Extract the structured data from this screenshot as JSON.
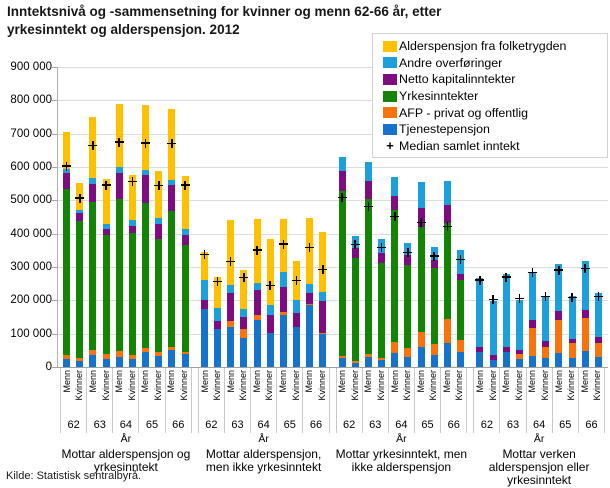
{
  "title": "Inntektsnivå og -sammensetning for kvinner og menn 62-66 år, etter\nyrkesinntekt og alderspensjon. 2012",
  "source": "Kilde: Statistisk sentralbyrå.",
  "legend": {
    "items": [
      {
        "key": "alderspensjon",
        "label": "Alderspensjon fra folketrygden",
        "color": "#ffc000"
      },
      {
        "key": "overforinger",
        "label": "Andre overføringer",
        "color": "#1ba0dc"
      },
      {
        "key": "kapital",
        "label": "Netto kapitalinntekter",
        "color": "#7c0c80"
      },
      {
        "key": "yrkesinntekter",
        "label": "Yrkesinntekter",
        "color": "#148404"
      },
      {
        "key": "afp",
        "label": "AFP - privat og offentlig",
        "color": "#f8730b"
      },
      {
        "key": "tjenestepensjon",
        "label": "Tjenestepensjon",
        "color": "#1673cc"
      },
      {
        "key": "median",
        "label": "Median samlet inntekt",
        "symbol": "+"
      }
    ]
  },
  "chart_data": {
    "type": "bar",
    "stacked": true,
    "ylim": [
      0,
      900000
    ],
    "ytick_interval": 100000,
    "yticks": [
      "900 000",
      "800 000",
      "700 000",
      "600 000",
      "500 000",
      "400 000",
      "300 000",
      "200 000",
      "100 000",
      "0"
    ],
    "grid": true,
    "legend_position": "top-right",
    "age_axis_label": "År",
    "ages": [
      "62",
      "63",
      "64",
      "65",
      "66"
    ],
    "genders": [
      "Menn",
      "Kvinner"
    ],
    "stack_order_bottom_to_top": [
      "tjenestepensjon",
      "afp",
      "yrkesinntekter",
      "kapital",
      "overforinger",
      "alderspensjon"
    ],
    "colors": {
      "tjenestepensjon": "#1673cc",
      "afp": "#f8730b",
      "yrkesinntekter": "#148404",
      "kapital": "#7c0c80",
      "overforinger": "#1ba0dc",
      "alderspensjon": "#ffc000"
    },
    "median_marker": "+",
    "groups": [
      {
        "label": "Mottar alderspensjon og yrkesinntekt",
        "bars": [
          {
            "age": "62",
            "gender": "Menn",
            "tjenestepensjon": 24000,
            "afp": 11000,
            "yrkesinntekter": 498000,
            "kapital": 50000,
            "overforinger": 10000,
            "alderspensjon": 112000,
            "median": 603000
          },
          {
            "age": "62",
            "gender": "Kvinner",
            "tjenestepensjon": 17000,
            "afp": 10000,
            "yrkesinntekter": 410000,
            "kapital": 25000,
            "overforinger": 10000,
            "alderspensjon": 81000,
            "median": 507000
          },
          {
            "age": "63",
            "gender": "Menn",
            "tjenestepensjon": 36000,
            "afp": 16000,
            "yrkesinntekter": 443000,
            "kapital": 53000,
            "overforinger": 20000,
            "alderspensjon": 182000,
            "median": 665000
          },
          {
            "age": "63",
            "gender": "Kvinner",
            "tjenestepensjon": 24000,
            "afp": 16000,
            "yrkesinntekter": 357000,
            "kapital": 18000,
            "overforinger": 15000,
            "alderspensjon": 135000,
            "median": 546000
          },
          {
            "age": "64",
            "gender": "Menn",
            "tjenestepensjon": 29000,
            "afp": 20000,
            "yrkesinntekter": 456000,
            "kapital": 78000,
            "overforinger": 17000,
            "alderspensjon": 190000,
            "median": 675000
          },
          {
            "age": "64",
            "gender": "Kvinner",
            "tjenestepensjon": 25000,
            "afp": 12000,
            "yrkesinntekter": 366000,
            "kapital": 19000,
            "overforinger": 18000,
            "alderspensjon": 137000,
            "median": 556000
          },
          {
            "age": "65",
            "gender": "Menn",
            "tjenestepensjon": 44000,
            "afp": 12000,
            "yrkesinntekter": 436000,
            "kapital": 83000,
            "overforinger": 15000,
            "alderspensjon": 197000,
            "median": 672000
          },
          {
            "age": "65",
            "gender": "Kvinner",
            "tjenestepensjon": 33000,
            "afp": 12000,
            "yrkesinntekter": 340000,
            "kapital": 43000,
            "overforinger": 20000,
            "alderspensjon": 139000,
            "median": 544000
          },
          {
            "age": "66",
            "gender": "Menn",
            "tjenestepensjon": 52000,
            "afp": 8000,
            "yrkesinntekter": 408000,
            "kapital": 77000,
            "overforinger": 15000,
            "alderspensjon": 213000,
            "median": 671000
          },
          {
            "age": "66",
            "gender": "Kvinner",
            "tjenestepensjon": 38000,
            "afp": 8000,
            "yrkesinntekter": 319000,
            "kapital": 30000,
            "overforinger": 18000,
            "alderspensjon": 159000,
            "median": 546000
          }
        ]
      },
      {
        "label": "Mottar alderspensjon, men ikke yrkesinntekt",
        "bars": [
          {
            "age": "62",
            "gender": "Menn",
            "tjenestepensjon": 175000,
            "afp": 0,
            "yrkesinntekter": 0,
            "kapital": 25000,
            "overforinger": 60000,
            "alderspensjon": 85000,
            "median": 338000
          },
          {
            "age": "62",
            "gender": "Kvinner",
            "tjenestepensjon": 113000,
            "afp": 0,
            "yrkesinntekter": 0,
            "kapital": 26000,
            "overforinger": 37000,
            "alderspensjon": 94000,
            "median": 257000
          },
          {
            "age": "63",
            "gender": "Menn",
            "tjenestepensjon": 119000,
            "afp": 20000,
            "yrkesinntekter": 0,
            "kapital": 84000,
            "overforinger": 23000,
            "alderspensjon": 195000,
            "median": 316000
          },
          {
            "age": "63",
            "gender": "Kvinner",
            "tjenestepensjon": 86000,
            "afp": 27000,
            "yrkesinntekter": 0,
            "kapital": 36000,
            "overforinger": 25000,
            "alderspensjon": 117000,
            "median": 268000
          },
          {
            "age": "64",
            "gender": "Menn",
            "tjenestepensjon": 141000,
            "afp": 15000,
            "yrkesinntekter": 0,
            "kapital": 75000,
            "overforinger": 22000,
            "alderspensjon": 190000,
            "median": 351000
          },
          {
            "age": "64",
            "gender": "Kvinner",
            "tjenestepensjon": 102000,
            "afp": 0,
            "yrkesinntekter": 0,
            "kapital": 54000,
            "overforinger": 30000,
            "alderspensjon": 197000,
            "median": 245000
          },
          {
            "age": "65",
            "gender": "Menn",
            "tjenestepensjon": 155000,
            "afp": 10000,
            "yrkesinntekter": 0,
            "kapital": 75000,
            "overforinger": 45000,
            "alderspensjon": 158000,
            "median": 369000
          },
          {
            "age": "65",
            "gender": "Kvinner",
            "tjenestepensjon": 121000,
            "afp": 0,
            "yrkesinntekter": 0,
            "kapital": 42000,
            "overforinger": 38000,
            "alderspensjon": 118000,
            "median": 259000
          },
          {
            "age": "66",
            "gender": "Menn",
            "tjenestepensjon": 185000,
            "afp": 5000,
            "yrkesinntekter": 0,
            "kapital": 33000,
            "overforinger": 25000,
            "alderspensjon": 198000,
            "median": 358000
          },
          {
            "age": "66",
            "gender": "Kvinner",
            "tjenestepensjon": 99000,
            "afp": 4000,
            "yrkesinntekter": 0,
            "kapital": 96000,
            "overforinger": 27000,
            "alderspensjon": 180000,
            "median": 293000
          }
        ]
      },
      {
        "label": "Mottar yrkesinntekt, men ikke alderspensjon",
        "bars": [
          {
            "age": "62",
            "gender": "Menn",
            "tjenestepensjon": 28000,
            "afp": 6000,
            "yrkesinntekter": 495000,
            "kapital": 58000,
            "overforinger": 44000,
            "alderspensjon": 0,
            "median": 508000
          },
          {
            "age": "62",
            "gender": "Kvinner",
            "tjenestepensjon": 13000,
            "afp": 6000,
            "yrkesinntekter": 307000,
            "kapital": 30000,
            "overforinger": 36000,
            "alderspensjon": 0,
            "median": 368000
          },
          {
            "age": "63",
            "gender": "Menn",
            "tjenestepensjon": 30000,
            "afp": 8000,
            "yrkesinntekter": 467000,
            "kapital": 54000,
            "overforinger": 57000,
            "alderspensjon": 0,
            "median": 482000
          },
          {
            "age": "63",
            "gender": "Kvinner",
            "tjenestepensjon": 21000,
            "afp": 6000,
            "yrkesinntekter": 284000,
            "kapital": 32000,
            "overforinger": 40000,
            "alderspensjon": 0,
            "median": 358000
          },
          {
            "age": "64",
            "gender": "Menn",
            "tjenestepensjon": 43000,
            "afp": 33000,
            "yrkesinntekter": 395000,
            "kapital": 42000,
            "overforinger": 58000,
            "alderspensjon": 0,
            "median": 451000
          },
          {
            "age": "64",
            "gender": "Kvinner",
            "tjenestepensjon": 31000,
            "afp": 25000,
            "yrkesinntekter": 250000,
            "kapital": 30000,
            "overforinger": 35000,
            "alderspensjon": 0,
            "median": 344000
          },
          {
            "age": "65",
            "gender": "Menn",
            "tjenestepensjon": 61000,
            "afp": 45000,
            "yrkesinntekter": 315000,
            "kapital": 55000,
            "overforinger": 80000,
            "alderspensjon": 0,
            "median": 433000
          },
          {
            "age": "65",
            "gender": "Kvinner",
            "tjenestepensjon": 35000,
            "afp": 34000,
            "yrkesinntekter": 227000,
            "kapital": 25000,
            "overforinger": 40000,
            "alderspensjon": 0,
            "median": 333000
          },
          {
            "age": "66",
            "gender": "Menn",
            "tjenestepensjon": 73000,
            "afp": 70000,
            "yrkesinntekter": 289000,
            "kapital": 53000,
            "overforinger": 72000,
            "alderspensjon": 0,
            "median": 421000
          },
          {
            "age": "66",
            "gender": "Kvinner",
            "tjenestepensjon": 46000,
            "afp": 35000,
            "yrkesinntekter": 179000,
            "kapital": 20000,
            "overforinger": 70000,
            "alderspensjon": 0,
            "median": 323000
          }
        ]
      },
      {
        "label": "Mottar verken alderspensjon eller yrkesinntekt",
        "bars": [
          {
            "age": "62",
            "gender": "Menn",
            "tjenestepensjon": 45000,
            "afp": 0,
            "yrkesinntekter": 0,
            "kapital": 15000,
            "overforinger": 208000,
            "alderspensjon": 0,
            "median": 261000
          },
          {
            "age": "62",
            "gender": "Kvinner",
            "tjenestepensjon": 22000,
            "afp": 0,
            "yrkesinntekter": 0,
            "kapital": 13000,
            "overforinger": 163000,
            "alderspensjon": 0,
            "median": 203000
          },
          {
            "age": "63",
            "gender": "Menn",
            "tjenestepensjon": 46000,
            "afp": 0,
            "yrkesinntekter": 0,
            "kapital": 15000,
            "overforinger": 219000,
            "alderspensjon": 0,
            "median": 270000
          },
          {
            "age": "63",
            "gender": "Kvinner",
            "tjenestepensjon": 25000,
            "afp": 15000,
            "yrkesinntekter": 0,
            "kapital": 12000,
            "overforinger": 150000,
            "alderspensjon": 0,
            "median": 206000
          },
          {
            "age": "64",
            "gender": "Menn",
            "tjenestepensjon": 32000,
            "afp": 85000,
            "yrkesinntekter": 0,
            "kapital": 25000,
            "overforinger": 143000,
            "alderspensjon": 0,
            "median": 284000
          },
          {
            "age": "64",
            "gender": "Kvinner",
            "tjenestepensjon": 27000,
            "afp": 33000,
            "yrkesinntekter": 0,
            "kapital": 17000,
            "overforinger": 137000,
            "alderspensjon": 0,
            "median": 212000
          },
          {
            "age": "65",
            "gender": "Menn",
            "tjenestepensjon": 42000,
            "afp": 100000,
            "yrkesinntekter": 0,
            "kapital": 25000,
            "overforinger": 142000,
            "alderspensjon": 0,
            "median": 291000
          },
          {
            "age": "65",
            "gender": "Kvinner",
            "tjenestepensjon": 27000,
            "afp": 45000,
            "yrkesinntekter": 0,
            "kapital": 12000,
            "overforinger": 130000,
            "alderspensjon": 0,
            "median": 208000
          },
          {
            "age": "66",
            "gender": "Menn",
            "tjenestepensjon": 47000,
            "afp": 100000,
            "yrkesinntekter": 0,
            "kapital": 25000,
            "overforinger": 146000,
            "alderspensjon": 0,
            "median": 295000
          },
          {
            "age": "66",
            "gender": "Kvinner",
            "tjenestepensjon": 30000,
            "afp": 42000,
            "yrkesinntekter": 0,
            "kapital": 18000,
            "overforinger": 132000,
            "alderspensjon": 0,
            "median": 212000
          }
        ]
      }
    ]
  }
}
